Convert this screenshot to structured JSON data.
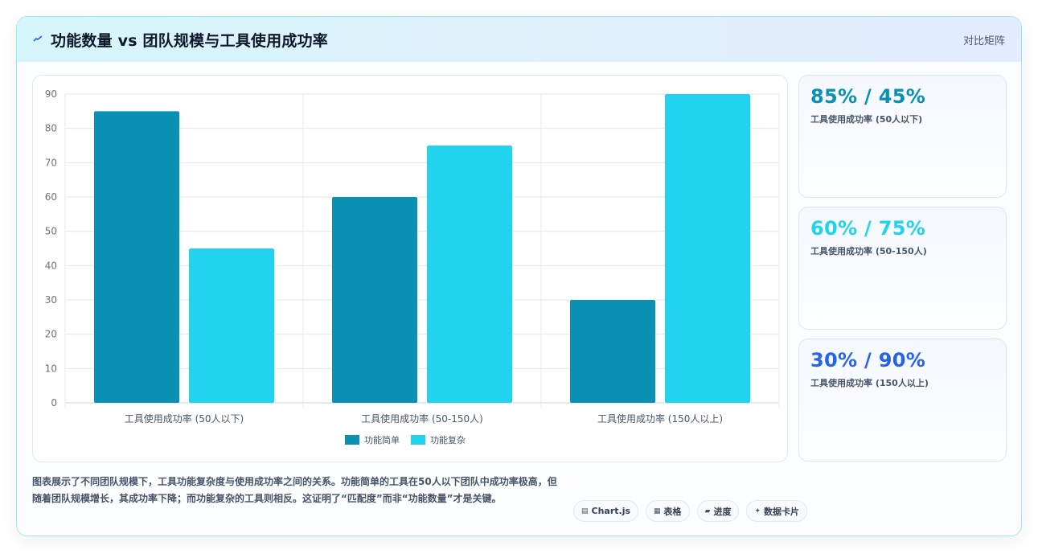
{
  "header": {
    "title": "功能数量 vs 团队规模与工具使用成功率",
    "tag": "对比矩阵",
    "title_icon": "trend-line-icon"
  },
  "chart_data": {
    "type": "bar",
    "categories": [
      "工具使用成功率 (50人以下)",
      "工具使用成功率 (50-150人)",
      "工具使用成功率 (150人以上)"
    ],
    "series": [
      {
        "name": "功能简单",
        "values": [
          85,
          60,
          30
        ],
        "color": "#0891b2"
      },
      {
        "name": "功能复杂",
        "values": [
          45,
          75,
          90
        ],
        "color": "#22d3ee"
      }
    ],
    "title": "",
    "xlabel": "",
    "ylabel": "",
    "ylim": [
      0,
      90
    ],
    "yticks": [
      "0",
      "10",
      "20",
      "30",
      "40",
      "50",
      "60",
      "70",
      "80",
      "90"
    ],
    "grid": true,
    "legend": "bottom-center"
  },
  "stats": [
    {
      "value": "85% / 45%",
      "label": "工具使用成功率 (50人以下)",
      "color": "#0891b2"
    },
    {
      "value": "60% / 75%",
      "label": "工具使用成功率 (50-150人)",
      "color": "#22d3ee"
    },
    {
      "value": "30% / 90%",
      "label": "工具使用成功率 (150人以上)",
      "color": "#2563eb"
    }
  ],
  "description": "图表展示了不同团队规模下，工具功能复杂度与使用成功率之间的关系。功能简单的工具在50人以下团队中成功率极高，但随着团队规模增长，其成功率下降；而功能复杂的工具则相反。这证明了“匹配度”而非“功能数量”才是关键。",
  "chips": [
    {
      "label": "Chart.js",
      "icon": "chart-icon"
    },
    {
      "label": "表格",
      "icon": "table-icon"
    },
    {
      "label": "进度",
      "icon": "progress-icon"
    },
    {
      "label": "数据卡片",
      "icon": "sparkle-icon"
    }
  ]
}
